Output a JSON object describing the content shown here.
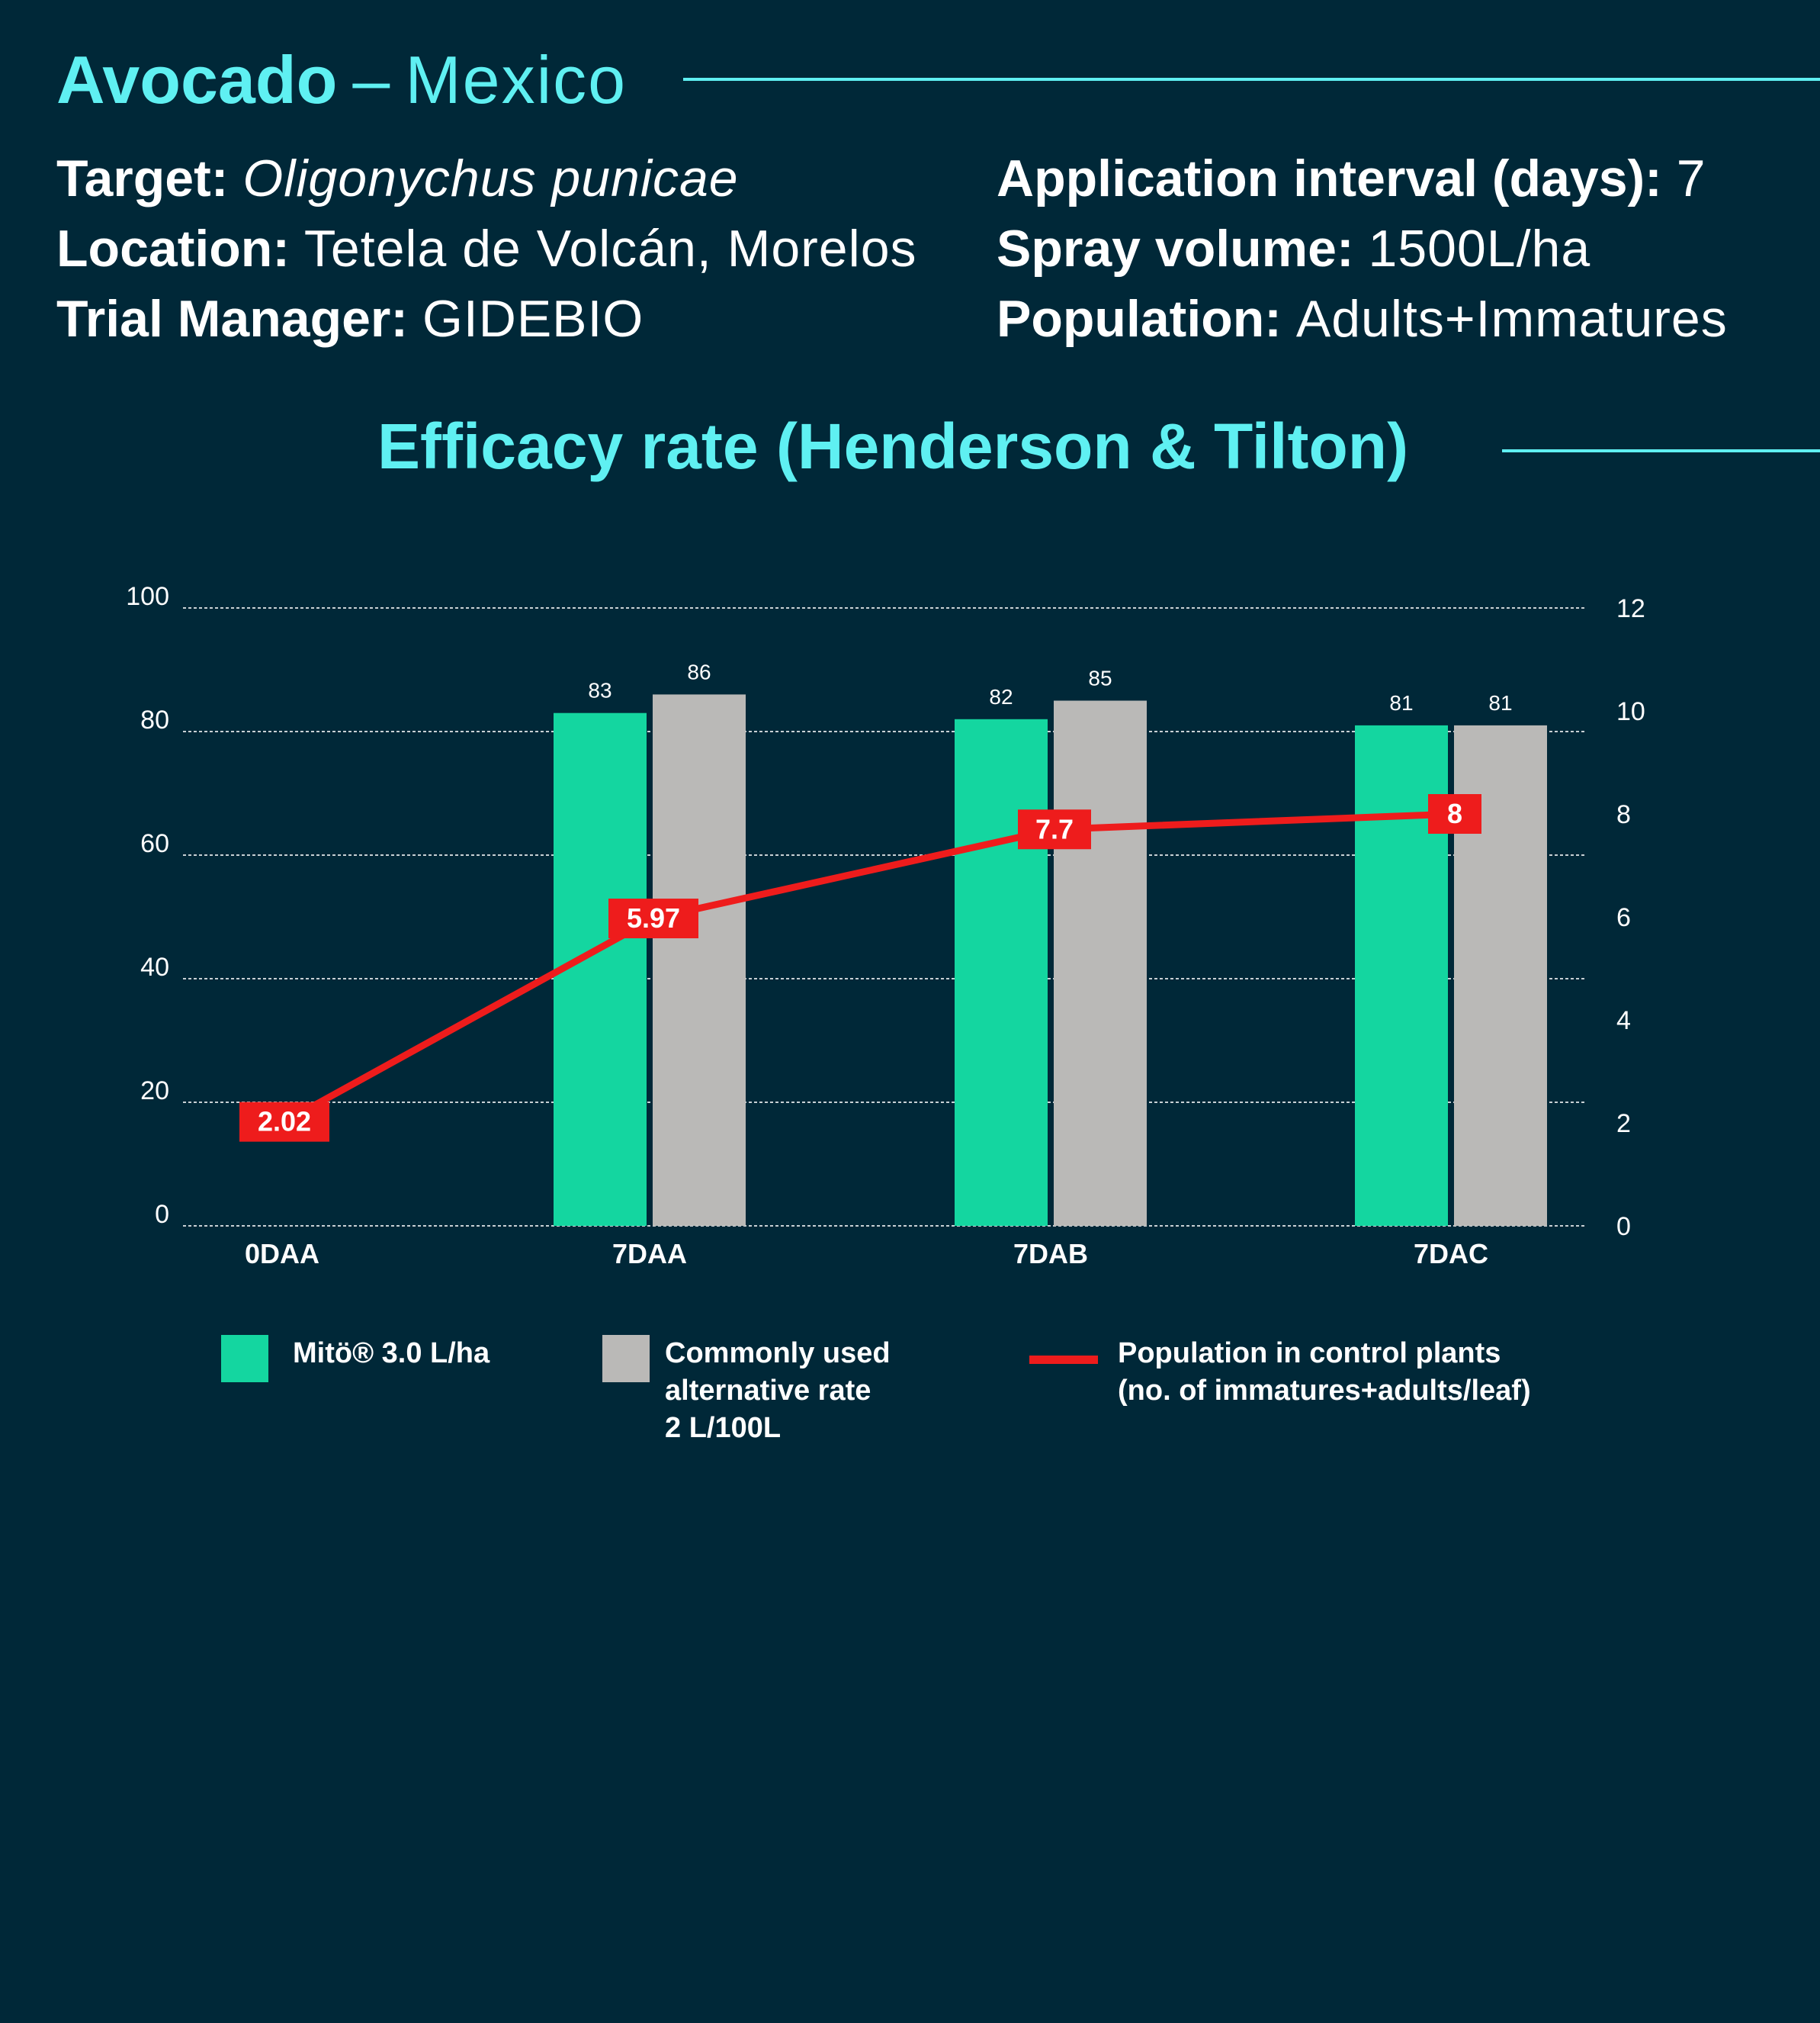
{
  "header": {
    "crop": "Avocado",
    "separator": "–",
    "country": "Mexico"
  },
  "info_left": [
    {
      "label": "Target:",
      "value": "Oligonychus punicae"
    },
    {
      "label": "Location:",
      "value": "Tetela de Volcán, Morelos"
    },
    {
      "label": "Trial Manager:",
      "value": "GIDEBIO"
    }
  ],
  "info_right": [
    {
      "label": "Application interval (days):",
      "value": "7"
    },
    {
      "label": "Spray volume:",
      "value": "1500L/ha"
    },
    {
      "label": "Population:",
      "value": "Adults+Immatures"
    }
  ],
  "section_title": "Efficacy rate (Henderson & Tilton)",
  "colors": {
    "background": "#002838",
    "accent": "#5ff0f2",
    "mito": "#14d6a0",
    "alternative": "#bab9b7",
    "population": "#ee1c1c"
  },
  "legend": {
    "mito": [
      "Mitö® 3.0 L/ha"
    ],
    "alternative": [
      "Commonly used",
      "alternative rate",
      "2 L/100L"
    ],
    "population": [
      "Population in control plants",
      "(no. of immatures+adults/leaf)"
    ]
  },
  "chart_data": {
    "type": "bar",
    "title": "Efficacy rate (Henderson & Tilton)",
    "categories": [
      "0DAA",
      "7DAA",
      "7DAB",
      "7DAC"
    ],
    "series": [
      {
        "name": "Mitö® 3.0 L/ha",
        "type": "bar",
        "axis": "left",
        "values": [
          null,
          83,
          82,
          81
        ],
        "labels": [
          "",
          "83",
          "82",
          "81"
        ]
      },
      {
        "name": "Commonly used alternative rate 2 L/100L",
        "type": "bar",
        "axis": "left",
        "values": [
          null,
          86,
          85,
          81
        ],
        "labels": [
          "",
          "86",
          "85",
          "81"
        ]
      },
      {
        "name": "Population in control plants (no. of immatures+adults/leaf)",
        "type": "line",
        "axis": "right",
        "values": [
          2.02,
          5.97,
          7.7,
          8
        ],
        "labels": [
          "2.02",
          "5.97",
          "7.7",
          "8"
        ]
      }
    ],
    "y_left": {
      "ylim": [
        0,
        100
      ],
      "ticks": [
        "0",
        "20",
        "40",
        "60",
        "80",
        "100"
      ]
    },
    "y_right": {
      "ylim": [
        0,
        12
      ],
      "ticks": [
        "0",
        "2",
        "4",
        "6",
        "8",
        "10",
        "12"
      ]
    },
    "grid": "dashed horizontal",
    "legend_position": "bottom"
  }
}
